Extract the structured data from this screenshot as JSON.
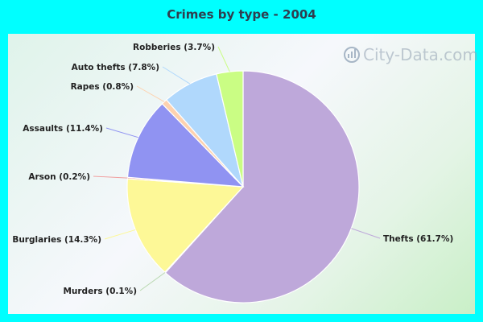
{
  "chart_data": {
    "type": "pie",
    "title": "Crimes by type - 2004",
    "watermark": "City-Data.com",
    "slices": [
      {
        "label": "Thefts (61.7%)",
        "value": 61.7,
        "color": "#bea8da"
      },
      {
        "label": "Murders (0.1%)",
        "value": 0.1,
        "color": "#b8d8b0"
      },
      {
        "label": "Burglaries (14.3%)",
        "value": 14.3,
        "color": "#fdf897"
      },
      {
        "label": "Arson (0.2%)",
        "value": 0.2,
        "color": "#f0a0a0"
      },
      {
        "label": "Assaults (11.4%)",
        "value": 11.4,
        "color": "#9093f2"
      },
      {
        "label": "Rapes (0.8%)",
        "value": 0.8,
        "color": "#fdd2b0"
      },
      {
        "label": "Auto thefts (7.8%)",
        "value": 7.8,
        "color": "#b0d8fc"
      },
      {
        "label": "Robberies (3.7%)",
        "value": 3.7,
        "color": "#cafd84"
      }
    ]
  }
}
